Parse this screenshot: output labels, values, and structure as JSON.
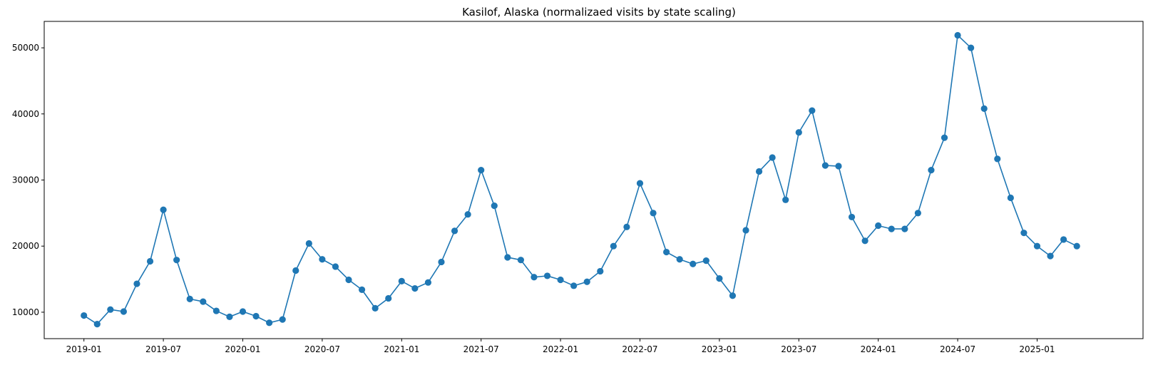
{
  "chart_data": {
    "type": "line",
    "title": "Kasilof, Alaska (normalizaed visits by state scaling)",
    "xlabel": "",
    "ylabel": "",
    "x_tick_labels": [
      "2019-01",
      "2019-07",
      "2020-01",
      "2020-07",
      "2021-01",
      "2021-07",
      "2022-01",
      "2022-07",
      "2023-01",
      "2023-07",
      "2024-01",
      "2024-07",
      "2025-01"
    ],
    "y_ticks": [
      10000,
      20000,
      30000,
      40000,
      50000
    ],
    "y_tick_labels": [
      "10000",
      "20000",
      "30000",
      "40000",
      "50000"
    ],
    "xlim": [
      "2018-10",
      "2025-09"
    ],
    "ylim": [
      6000,
      54000
    ],
    "grid": false,
    "legend": false,
    "series": [
      {
        "color": "#1f77b4",
        "marker": "circle",
        "x": [
          "2019-01",
          "2019-02",
          "2019-03",
          "2019-04",
          "2019-05",
          "2019-06",
          "2019-07",
          "2019-08",
          "2019-09",
          "2019-10",
          "2019-11",
          "2019-12",
          "2020-01",
          "2020-02",
          "2020-03",
          "2020-04",
          "2020-05",
          "2020-06",
          "2020-07",
          "2020-08",
          "2020-09",
          "2020-10",
          "2020-11",
          "2020-12",
          "2021-01",
          "2021-02",
          "2021-03",
          "2021-04",
          "2021-05",
          "2021-06",
          "2021-07",
          "2021-08",
          "2021-09",
          "2021-10",
          "2021-11",
          "2021-12",
          "2022-01",
          "2022-02",
          "2022-03",
          "2022-04",
          "2022-05",
          "2022-06",
          "2022-07",
          "2022-08",
          "2022-09",
          "2022-10",
          "2022-11",
          "2022-12",
          "2023-01",
          "2023-02",
          "2023-03",
          "2023-04",
          "2023-05",
          "2023-06",
          "2023-07",
          "2023-08",
          "2023-09",
          "2023-10",
          "2023-11",
          "2023-12",
          "2024-01",
          "2024-02",
          "2024-03",
          "2024-04",
          "2024-05",
          "2024-06",
          "2024-07",
          "2024-08",
          "2024-09",
          "2024-10",
          "2024-11",
          "2024-12",
          "2025-01",
          "2025-02",
          "2025-03",
          "2025-04"
        ],
        "values": [
          9500,
          8200,
          10400,
          10100,
          14300,
          17700,
          25500,
          17900,
          12000,
          11600,
          10200,
          9300,
          10100,
          9400,
          8400,
          8900,
          16300,
          20400,
          18000,
          16900,
          14900,
          13400,
          10600,
          12100,
          14700,
          13600,
          14500,
          17600,
          22300,
          24800,
          31500,
          26100,
          18300,
          17900,
          15300,
          15500,
          14900,
          14000,
          14600,
          16200,
          20000,
          22900,
          29500,
          25000,
          19100,
          18000,
          17300,
          17800,
          15100,
          12500,
          22400,
          31300,
          33400,
          27000,
          37200,
          40500,
          32200,
          32100,
          24400,
          20800,
          23100,
          22600,
          22600,
          25000,
          31500,
          36400,
          51900,
          50000,
          40800,
          33200,
          27300,
          22000,
          20000,
          18500,
          21000,
          20000
        ]
      }
    ]
  }
}
